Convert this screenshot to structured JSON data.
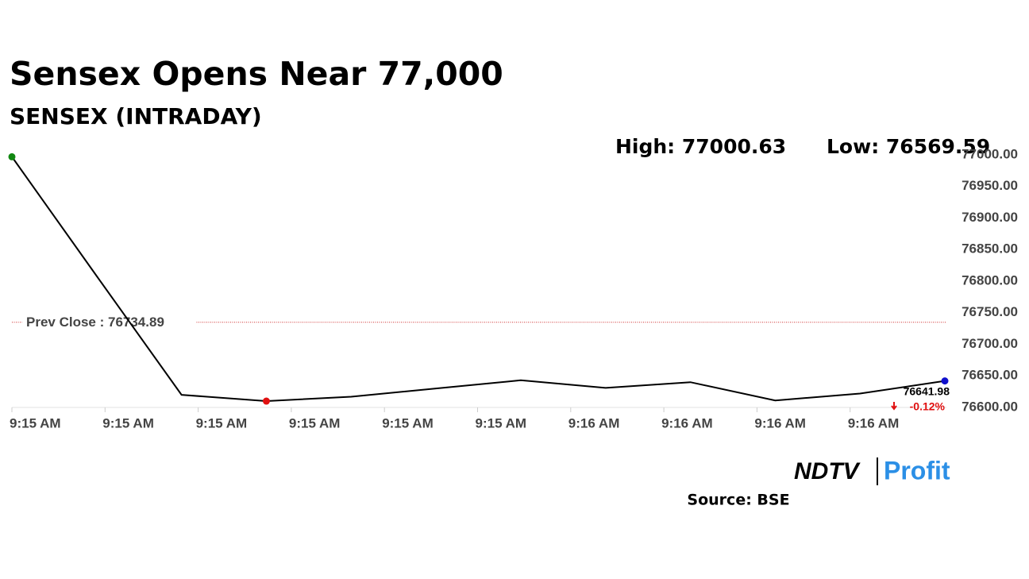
{
  "chart_data": {
    "type": "line",
    "title": "Sensex Opens Near 77,000",
    "subtitle": "SENSEX (INTRADAY)",
    "high_label": "High: 77000.63",
    "low_label": "Low: 76569.59",
    "values": [
      76997,
      76808,
      76620,
      76610,
      76617,
      76630,
      76643,
      76631,
      76640,
      76611,
      76622,
      76641.98
    ],
    "color": "#000000",
    "markers": [
      {
        "index": 0,
        "color": "#118811"
      },
      {
        "index": 3,
        "color": "#e01010"
      },
      {
        "index": 11,
        "color": "#1010cc"
      }
    ],
    "last_value_label": "76641.98",
    "last_change": "-0.12%",
    "prev_close": {
      "value": 76734.89,
      "label": "Prev Close : 76734.89"
    },
    "x_tick_labels": [
      "9:15 AM",
      "9:15 AM",
      "9:15 AM",
      "9:15 AM",
      "9:15 AM",
      "9:15 AM",
      "9:16 AM",
      "9:16 AM",
      "9:16 AM",
      "9:16 AM"
    ],
    "ylim": [
      76600,
      77000
    ],
    "yticks": [
      {
        "value": 76600,
        "label": "76600.00"
      },
      {
        "value": 76650,
        "label": "76650.00"
      },
      {
        "value": 76700,
        "label": "76700.00"
      },
      {
        "value": 76750,
        "label": "76750.00"
      },
      {
        "value": 76800,
        "label": "76800.00"
      },
      {
        "value": 76850,
        "label": "76850.00"
      },
      {
        "value": 76900,
        "label": "76900.00"
      },
      {
        "value": 76950,
        "label": "76950.00"
      },
      {
        "value": 77000,
        "label": "77000.00"
      }
    ],
    "logo": {
      "left": "NDTV",
      "right": "Profit"
    },
    "source": "Source: BSE"
  }
}
